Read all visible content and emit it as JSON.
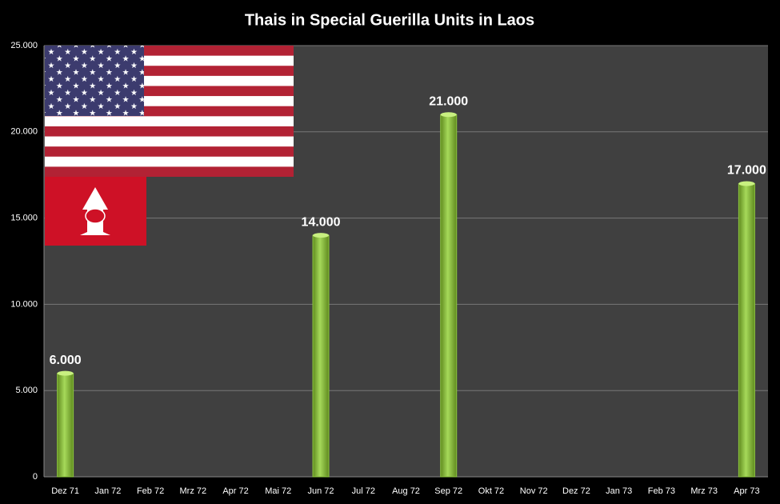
{
  "chart_data": {
    "type": "bar",
    "title": "Thais in Special Guerilla Units in Laos",
    "categories": [
      "Dez 71",
      "Jan 72",
      "Feb 72",
      "Mrz 72",
      "Apr 72",
      "Mai 72",
      "Jun 72",
      "Jul 72",
      "Aug 72",
      "Sep 72",
      "Okt 72",
      "Nov 72",
      "Dez 72",
      "Jan 73",
      "Feb 73",
      "Mrz 73",
      "Apr 73"
    ],
    "values": [
      6000,
      null,
      null,
      null,
      null,
      null,
      14000,
      null,
      null,
      21000,
      null,
      null,
      null,
      null,
      null,
      null,
      17000
    ],
    "value_labels": [
      "6.000",
      null,
      null,
      null,
      null,
      null,
      "14.000",
      null,
      null,
      "21.000",
      null,
      null,
      null,
      null,
      null,
      null,
      "17.000"
    ],
    "color": "#8dc63f",
    "ylim": [
      0,
      25000
    ],
    "yticks": [
      0,
      {
        "value": 5000,
        "label": "5.000"
      },
      {
        "value": 10000,
        "label": "10.000"
      },
      {
        "value": 15000,
        "label": "15.000"
      },
      {
        "value": 20000,
        "label": "20.000"
      },
      {
        "value": 25000,
        "label": "25.000"
      }
    ],
    "grid": true
  }
}
